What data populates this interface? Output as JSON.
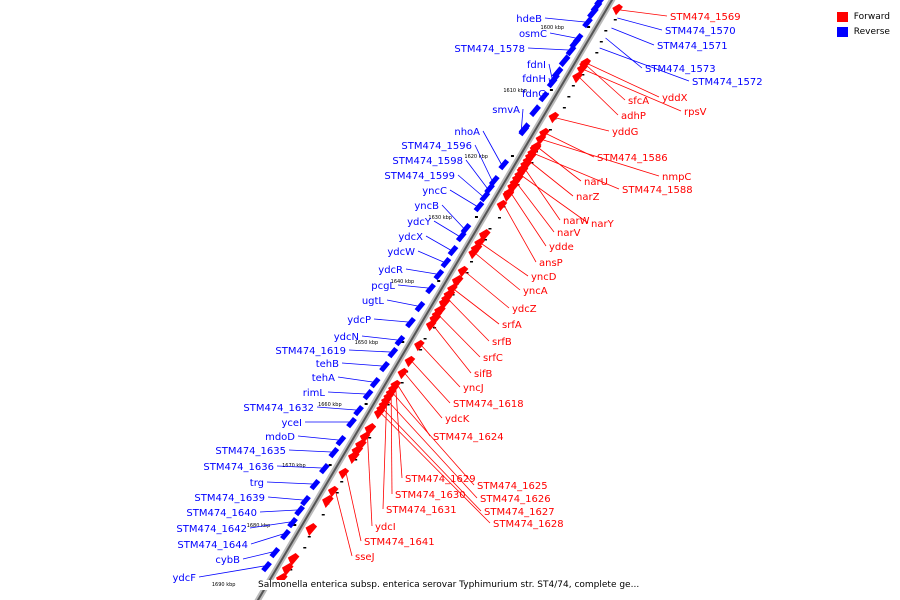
{
  "legend": [
    {
      "label": "Forward",
      "color": "#ff0000"
    },
    {
      "label": "Reverse",
      "color": "#0000ff"
    }
  ],
  "caption": "Salmonella enterica subsp. enterica serovar Typhimurium str. ST4/74, complete ge...",
  "colors": {
    "forward": "#ff0000",
    "reverse": "#0000ff",
    "backbone": "#888888"
  },
  "ticks": [
    "1600 kbp",
    "1610 kbp",
    "1620 kbp",
    "1630 kbp",
    "1640 kbp",
    "1650 kbp",
    "1660 kbp",
    "1670 kbp",
    "1680 kbp",
    "1690 kbp"
  ],
  "reverse_genes": [
    "hdeB",
    "osmC",
    "STM474_1578",
    "fdnI",
    "fdnH",
    "fdnG",
    "smvA",
    "nhoA",
    "STM474_1596",
    "STM474_1598",
    "STM474_1599",
    "yncC",
    "yncB",
    "ydcY",
    "ydcX",
    "ydcW",
    "ydcR",
    "pcgL",
    "ugtL",
    "ydcP",
    "ydcN",
    "STM474_1619",
    "tehB",
    "tehA",
    "rimL",
    "STM474_1632",
    "yceI",
    "mdoD",
    "STM474_1635",
    "STM474_1636",
    "trg",
    "STM474_1639",
    "STM474_1640",
    "STM474_1642",
    "STM474_1644",
    "cybB",
    "ydcF"
  ],
  "reverse_top_genes": [
    "STM474_1570",
    "STM474_1571",
    "STM474_1573",
    "STM474_1572"
  ],
  "forward_genes": [
    "STM474_1569",
    "yddX",
    "sfcA",
    "rpsV",
    "adhP",
    "yddG",
    "STM474_1586",
    "nmpC",
    "narU",
    "STM474_1588",
    "narZ",
    "narW",
    "narY",
    "narV",
    "ydde",
    "ansP",
    "yncD",
    "yncA",
    "ydcZ",
    "srfA",
    "srfB",
    "srfC",
    "sifB",
    "yncJ",
    "STM474_1618",
    "ydcK",
    "STM474_1624",
    "STM474_1629",
    "STM474_1625",
    "STM474_1630",
    "STM474_1626",
    "STM474_1631",
    "STM474_1627",
    "STM474_1628",
    "ydcI",
    "STM474_1641",
    "sseJ"
  ]
}
